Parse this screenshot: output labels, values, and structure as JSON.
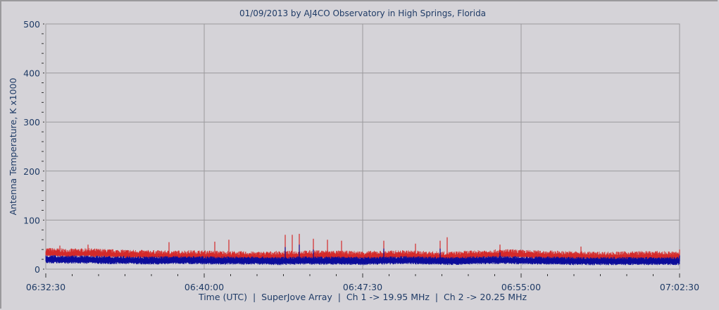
{
  "chart_data": {
    "type": "line",
    "title": "01/09/2013  by  AJ4CO Observatory  in  High Springs, Florida",
    "xlabel": "Time (UTC)  |  SuperJove Array  |  Ch 1 -> 19.95 MHz  |  Ch 2 -> 20.25 MHz",
    "ylabel": "Antenna Temperature, K x1000",
    "xlim_seconds": [
      0,
      1800
    ],
    "ylim": [
      0,
      500
    ],
    "x_ticks": [
      {
        "t": 0,
        "label": "06:32:30"
      },
      {
        "t": 450,
        "label": "06:40:00"
      },
      {
        "t": 900,
        "label": "06:47:30"
      },
      {
        "t": 1350,
        "label": "06:55:00"
      },
      {
        "t": 1800,
        "label": "07:02:30"
      }
    ],
    "y_ticks": [
      0,
      100,
      200,
      300,
      400,
      500
    ],
    "grid": true,
    "x_unit": "seconds after 06:32:30",
    "series": [
      {
        "name": "Ch 1 -> 19.95 MHz",
        "color": "#d42a2a",
        "sample_step_seconds": 60,
        "values": [
          36,
          34,
          35,
          33,
          32,
          31,
          30,
          31,
          30,
          29,
          28,
          29,
          30,
          31,
          30,
          29,
          30,
          31,
          29,
          28,
          30,
          32,
          33,
          31,
          30,
          29,
          28,
          28,
          29,
          29,
          28,
          27,
          27,
          28,
          30,
          28,
          27,
          27,
          26,
          26,
          25,
          25,
          26,
          25,
          26,
          25,
          25,
          25,
          24,
          25,
          24,
          25,
          24,
          25,
          24,
          24,
          24,
          24,
          24,
          24,
          25
        ],
        "peaks": [
          [
            40,
            48
          ],
          [
            120,
            50
          ],
          [
            350,
            55
          ],
          [
            480,
            56
          ],
          [
            520,
            60
          ],
          [
            680,
            70
          ],
          [
            700,
            70
          ],
          [
            720,
            72
          ],
          [
            760,
            62
          ],
          [
            800,
            60
          ],
          [
            840,
            58
          ],
          [
            960,
            58
          ],
          [
            1050,
            52
          ],
          [
            1120,
            58
          ],
          [
            1140,
            65
          ],
          [
            1290,
            50
          ],
          [
            1350,
            28
          ],
          [
            1520,
            46
          ],
          [
            1800,
            40
          ]
        ]
      },
      {
        "name": "Ch 2 -> 20.25 MHz",
        "color": "#0c0c9a",
        "sample_step_seconds": 60,
        "values": [
          24,
          23,
          23,
          22,
          22,
          21,
          22,
          22,
          21,
          21,
          21,
          20,
          21,
          21,
          21,
          20,
          21,
          22,
          21,
          20,
          21,
          22,
          22,
          21,
          21,
          20,
          20,
          20,
          20,
          20,
          20,
          19,
          19,
          19,
          21,
          20,
          19,
          19,
          19,
          19,
          18,
          18,
          18,
          18,
          18,
          18,
          18,
          19,
          18,
          18,
          18,
          18,
          18,
          18,
          18,
          18,
          18,
          18,
          18,
          18,
          19
        ],
        "peaks": [
          [
            680,
            45
          ],
          [
            720,
            50
          ],
          [
            760,
            40
          ],
          [
            960,
            42
          ],
          [
            1120,
            42
          ],
          [
            1290,
            34
          ],
          [
            1800,
            28
          ]
        ]
      }
    ]
  }
}
